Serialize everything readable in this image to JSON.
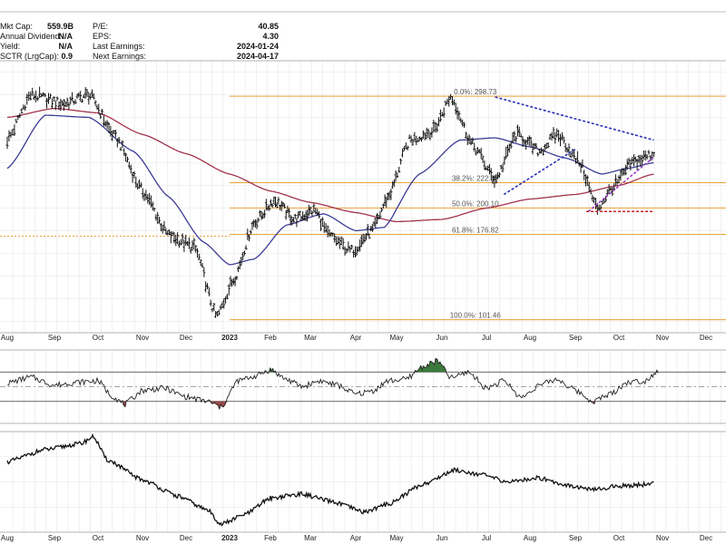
{
  "stats": {
    "left": [
      {
        "label": "Mkt Cap:",
        "value": "559.9B"
      },
      {
        "label": "Annual Dividend:",
        "value": "N/A"
      },
      {
        "label": "Yield:",
        "value": "N/A"
      },
      {
        "label": "SCTR (LrgCap):",
        "value": "0.9"
      }
    ],
    "right": [
      {
        "label": "P/E:",
        "value": "40.85"
      },
      {
        "label": "EPS:",
        "value": "4.30"
      },
      {
        "label": "Last Earnings:",
        "value": "2024-01-24"
      },
      {
        "label": "Next Earnings:",
        "value": "2024-04-17"
      }
    ]
  },
  "chart_data": [
    {
      "type": "line",
      "subtype": "ohlc-bars-with-moving-averages",
      "x_tick_labels": [
        "Aug",
        "Sep",
        "Oct",
        "Nov",
        "Dec",
        "2023",
        "Feb",
        "Mar",
        "Apr",
        "May",
        "Jun",
        "Jul",
        "Aug",
        "Sep",
        "Oct",
        "Nov",
        "Dec"
      ],
      "bold_tick": "2023",
      "ylim": [
        90,
        330
      ],
      "grid": true,
      "fib_levels": [
        {
          "label": "0.0%: 298.73",
          "value": 298.73
        },
        {
          "label": "38.2%: 222.37",
          "value": 222.37
        },
        {
          "label": "50.0%: 200.10",
          "value": 200.1
        },
        {
          "label": "61.8%: 176.82",
          "value": 176.82
        },
        {
          "label": "100.0%: 101.46",
          "value": 101.46
        }
      ],
      "price_anchors": [
        {
          "x": 0,
          "y": 260
        },
        {
          "x": 0.5,
          "y": 300
        },
        {
          "x": 1.2,
          "y": 292
        },
        {
          "x": 1.8,
          "y": 300
        },
        {
          "x": 2.4,
          "y": 262
        },
        {
          "x": 3.0,
          "y": 215
        },
        {
          "x": 3.6,
          "y": 176
        },
        {
          "x": 4.2,
          "y": 165
        },
        {
          "x": 4.7,
          "y": 104
        },
        {
          "x": 5.1,
          "y": 137
        },
        {
          "x": 5.6,
          "y": 187
        },
        {
          "x": 6.1,
          "y": 207
        },
        {
          "x": 6.6,
          "y": 190
        },
        {
          "x": 7.1,
          "y": 198
        },
        {
          "x": 7.4,
          "y": 176
        },
        {
          "x": 7.9,
          "y": 162
        },
        {
          "x": 8.4,
          "y": 180
        },
        {
          "x": 8.8,
          "y": 210
        },
        {
          "x": 9.3,
          "y": 260
        },
        {
          "x": 9.8,
          "y": 268
        },
        {
          "x": 10.2,
          "y": 298
        },
        {
          "x": 10.7,
          "y": 255
        },
        {
          "x": 11.2,
          "y": 225
        },
        {
          "x": 11.7,
          "y": 265
        },
        {
          "x": 12.2,
          "y": 250
        },
        {
          "x": 12.6,
          "y": 265
        },
        {
          "x": 13.1,
          "y": 240
        },
        {
          "x": 13.5,
          "y": 200
        },
        {
          "x": 13.9,
          "y": 220
        },
        {
          "x": 14.3,
          "y": 240
        },
        {
          "x": 14.8,
          "y": 248
        }
      ],
      "sma50": [
        {
          "x": 0,
          "y": 235
        },
        {
          "x": 0.8,
          "y": 282
        },
        {
          "x": 1.8,
          "y": 280
        },
        {
          "x": 2.8,
          "y": 250
        },
        {
          "x": 3.6,
          "y": 210
        },
        {
          "x": 4.4,
          "y": 170
        },
        {
          "x": 5.0,
          "y": 150
        },
        {
          "x": 5.6,
          "y": 155
        },
        {
          "x": 6.4,
          "y": 185
        },
        {
          "x": 7.3,
          "y": 195
        },
        {
          "x": 8.0,
          "y": 180
        },
        {
          "x": 8.7,
          "y": 183
        },
        {
          "x": 9.5,
          "y": 230
        },
        {
          "x": 10.4,
          "y": 260
        },
        {
          "x": 11.2,
          "y": 262
        },
        {
          "x": 12.0,
          "y": 254
        },
        {
          "x": 12.8,
          "y": 244
        },
        {
          "x": 13.6,
          "y": 230
        },
        {
          "x": 14.2,
          "y": 235
        },
        {
          "x": 14.8,
          "y": 240
        }
      ],
      "sma200": [
        {
          "x": 0,
          "y": 280
        },
        {
          "x": 1.0,
          "y": 288
        },
        {
          "x": 2.0,
          "y": 284
        },
        {
          "x": 3.0,
          "y": 265
        },
        {
          "x": 4.0,
          "y": 248
        },
        {
          "x": 5.0,
          "y": 230
        },
        {
          "x": 6.0,
          "y": 215
        },
        {
          "x": 7.0,
          "y": 205
        },
        {
          "x": 8.0,
          "y": 196
        },
        {
          "x": 9.0,
          "y": 188
        },
        {
          "x": 10.0,
          "y": 190
        },
        {
          "x": 11.0,
          "y": 200
        },
        {
          "x": 12.0,
          "y": 208
        },
        {
          "x": 13.0,
          "y": 212
        },
        {
          "x": 14.0,
          "y": 220
        },
        {
          "x": 14.8,
          "y": 230
        }
      ],
      "trendlines": [
        {
          "style": "blue-dashed",
          "x": [
            11.2,
            14.8
          ],
          "y": [
            298,
            260
          ]
        },
        {
          "style": "blue-dashed",
          "x": [
            11.4,
            13.0
          ],
          "y": [
            212,
            252
          ]
        },
        {
          "style": "purple-dashed",
          "x": [
            13.3,
            14.8
          ],
          "y": [
            197,
            245
          ]
        },
        {
          "style": "red-dashed",
          "x": [
            13.25,
            14.8
          ],
          "y": [
            197,
            197
          ]
        }
      ]
    },
    {
      "type": "line",
      "subtype": "oscillator",
      "ylim": [
        0,
        100
      ],
      "band_upper": 70,
      "band_mid": 50,
      "band_lower": 30,
      "anchors": [
        {
          "x": 0,
          "y": 55
        },
        {
          "x": 0.5,
          "y": 63
        },
        {
          "x": 1.0,
          "y": 52
        },
        {
          "x": 1.5,
          "y": 56
        },
        {
          "x": 2.0,
          "y": 58
        },
        {
          "x": 2.3,
          "y": 38
        },
        {
          "x": 2.6,
          "y": 26
        },
        {
          "x": 3.0,
          "y": 45
        },
        {
          "x": 3.5,
          "y": 48
        },
        {
          "x": 4.0,
          "y": 36
        },
        {
          "x": 4.5,
          "y": 30
        },
        {
          "x": 4.8,
          "y": 22
        },
        {
          "x": 5.2,
          "y": 58
        },
        {
          "x": 5.6,
          "y": 64
        },
        {
          "x": 6.0,
          "y": 73
        },
        {
          "x": 6.4,
          "y": 60
        },
        {
          "x": 6.8,
          "y": 50
        },
        {
          "x": 7.2,
          "y": 58
        },
        {
          "x": 7.6,
          "y": 52
        },
        {
          "x": 8.0,
          "y": 40
        },
        {
          "x": 8.4,
          "y": 44
        },
        {
          "x": 8.8,
          "y": 58
        },
        {
          "x": 9.2,
          "y": 60
        },
        {
          "x": 9.6,
          "y": 78
        },
        {
          "x": 9.9,
          "y": 85
        },
        {
          "x": 10.2,
          "y": 62
        },
        {
          "x": 10.6,
          "y": 70
        },
        {
          "x": 11.0,
          "y": 48
        },
        {
          "x": 11.4,
          "y": 58
        },
        {
          "x": 11.8,
          "y": 35
        },
        {
          "x": 12.2,
          "y": 52
        },
        {
          "x": 12.6,
          "y": 60
        },
        {
          "x": 13.0,
          "y": 45
        },
        {
          "x": 13.4,
          "y": 30
        },
        {
          "x": 13.8,
          "y": 40
        },
        {
          "x": 14.2,
          "y": 56
        },
        {
          "x": 14.6,
          "y": 58
        },
        {
          "x": 14.9,
          "y": 72
        }
      ]
    },
    {
      "type": "line",
      "subtype": "relative-strength",
      "ylim": [
        0,
        100
      ],
      "anchors": [
        {
          "x": 0,
          "y": 70
        },
        {
          "x": 0.8,
          "y": 82
        },
        {
          "x": 1.6,
          "y": 88
        },
        {
          "x": 1.9,
          "y": 95
        },
        {
          "x": 2.2,
          "y": 72
        },
        {
          "x": 3.0,
          "y": 52
        },
        {
          "x": 3.8,
          "y": 36
        },
        {
          "x": 4.5,
          "y": 22
        },
        {
          "x": 4.8,
          "y": 8
        },
        {
          "x": 5.4,
          "y": 18
        },
        {
          "x": 6.0,
          "y": 34
        },
        {
          "x": 6.8,
          "y": 38
        },
        {
          "x": 7.5,
          "y": 30
        },
        {
          "x": 8.2,
          "y": 20
        },
        {
          "x": 8.8,
          "y": 28
        },
        {
          "x": 9.6,
          "y": 48
        },
        {
          "x": 10.3,
          "y": 62
        },
        {
          "x": 10.8,
          "y": 58
        },
        {
          "x": 11.5,
          "y": 50
        },
        {
          "x": 12.2,
          "y": 54
        },
        {
          "x": 12.8,
          "y": 47
        },
        {
          "x": 13.4,
          "y": 42
        },
        {
          "x": 14.0,
          "y": 46
        },
        {
          "x": 14.8,
          "y": 48
        }
      ]
    }
  ],
  "colors": {
    "price": "#111111",
    "sma50": "#3c3c96",
    "sma200": "#a3324b",
    "fib": "#e8a33a",
    "blueDash": "#2830b8",
    "purpleDash": "#9a3cc8",
    "redDash": "#c8202d",
    "grid": "#e6e6e6",
    "fillUp": "#3b7a3b",
    "fillDown": "#9c4a4a"
  }
}
